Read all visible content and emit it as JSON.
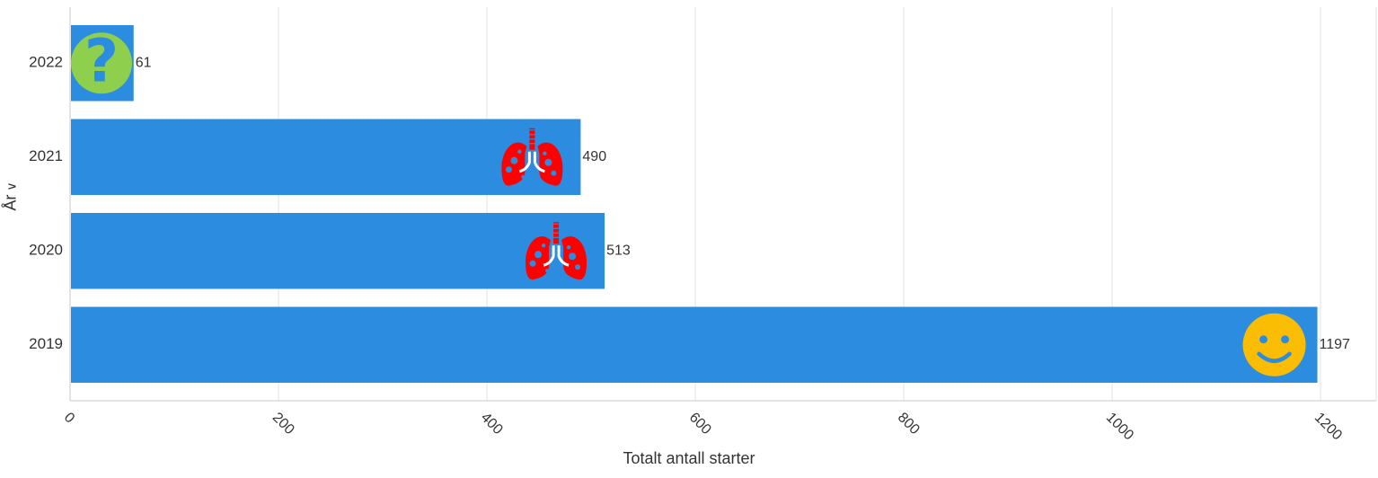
{
  "chart_data": {
    "type": "bar",
    "orientation": "horizontal",
    "categories": [
      "2022",
      "2021",
      "2020",
      "2019"
    ],
    "values": [
      61,
      490,
      513,
      1197
    ],
    "icons": [
      "question-icon",
      "lungs-icon",
      "lungs-icon",
      "smiley-icon"
    ],
    "xlabel": "Totalt antall starter",
    "ylabel": "År",
    "xlim": [
      0,
      1250
    ],
    "xticks": [
      0,
      200,
      400,
      600,
      800,
      1000,
      1200
    ],
    "grid": true,
    "colors": {
      "bar": "#2b8ce0",
      "grid": "#e3e3e3",
      "axis": "#c8c8c8",
      "question_bg": "#8ecf4d",
      "lungs": "#ff0000",
      "smiley": "#fbbc04"
    }
  }
}
